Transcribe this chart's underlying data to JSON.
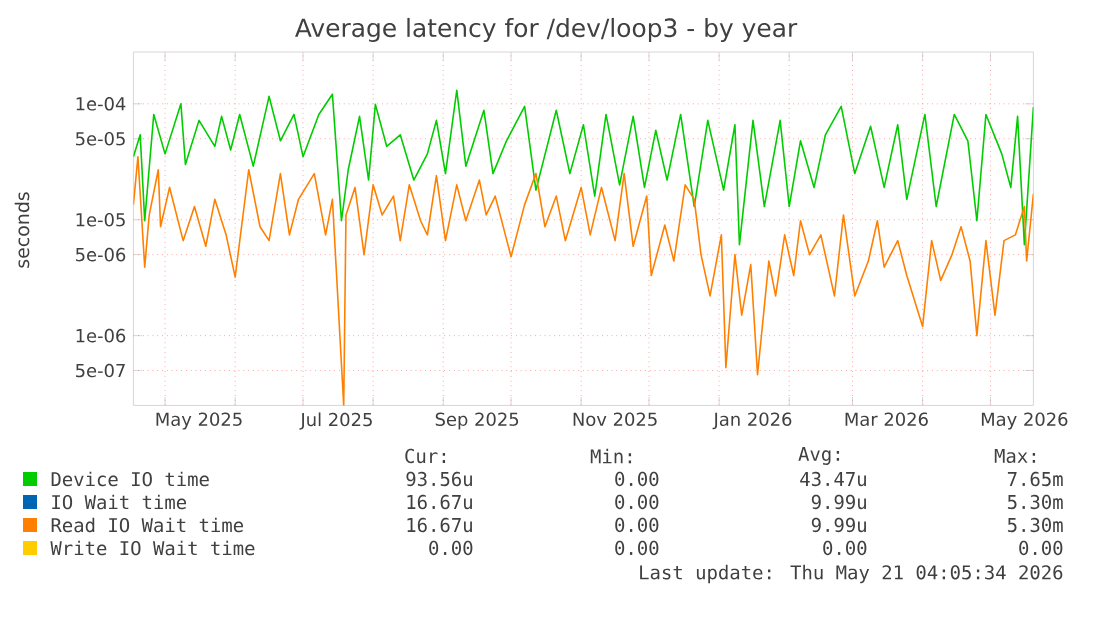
{
  "chart_data": {
    "type": "line",
    "title": "Average latency for /dev/loop3 - by year",
    "ylabel": "seconds",
    "log": "y",
    "grid": true,
    "legend": "bottom",
    "marker": "none",
    "line_style": "solid",
    "xlim": [
      "2025-04-17",
      "2026-05-20"
    ],
    "ylim": [
      2.5e-07,
      0.00028
    ],
    "yticks": [
      {
        "value": 5e-07,
        "label": "5e-07"
      },
      {
        "value": 1e-06,
        "label": "1e-06"
      },
      {
        "value": 5e-06,
        "label": "5e-06"
      },
      {
        "value": 1e-05,
        "label": "1e-05"
      },
      {
        "value": 5e-05,
        "label": "5e-05"
      },
      {
        "value": 0.0001,
        "label": "1e-04"
      }
    ],
    "xticks": [
      {
        "value": "2025-05-01",
        "label": null
      },
      {
        "value": "2025-05-16",
        "label": "May 2025"
      },
      {
        "value": "2025-06-01",
        "label": null
      },
      {
        "value": "2025-07-01",
        "label": null
      },
      {
        "value": "2025-07-16",
        "label": "Jul 2025"
      },
      {
        "value": "2025-08-01",
        "label": null
      },
      {
        "value": "2025-09-01",
        "label": null
      },
      {
        "value": "2025-09-16",
        "label": "Sep 2025"
      },
      {
        "value": "2025-10-01",
        "label": null
      },
      {
        "value": "2025-11-01",
        "label": null
      },
      {
        "value": "2025-11-16",
        "label": "Nov 2025"
      },
      {
        "value": "2025-12-01",
        "label": null
      },
      {
        "value": "2026-01-01",
        "label": null
      },
      {
        "value": "2026-01-16",
        "label": "Jan 2026"
      },
      {
        "value": "2026-02-01",
        "label": null
      },
      {
        "value": "2026-03-01",
        "label": null
      },
      {
        "value": "2026-03-16",
        "label": "Mar 2026"
      },
      {
        "value": "2026-04-01",
        "label": null
      },
      {
        "value": "2026-05-01",
        "label": null
      },
      {
        "value": "2026-05-16",
        "label": "May 2026"
      }
    ],
    "series": [
      {
        "name": "Device IO time",
        "color": "#00cc00",
        "x": [
          "2025-04-17",
          "2025-04-20",
          "2025-04-22",
          "2025-04-26",
          "2025-05-01",
          "2025-05-08",
          "2025-05-10",
          "2025-05-16",
          "2025-05-23",
          "2025-05-26",
          "2025-05-30",
          "2025-06-03",
          "2025-06-09",
          "2025-06-16",
          "2025-06-21",
          "2025-06-27",
          "2025-07-01",
          "2025-07-08",
          "2025-07-14",
          "2025-07-18",
          "2025-07-21",
          "2025-07-26",
          "2025-07-30",
          "2025-08-02",
          "2025-08-07",
          "2025-08-13",
          "2025-08-19",
          "2025-08-25",
          "2025-08-29",
          "2025-09-02",
          "2025-09-07",
          "2025-09-11",
          "2025-09-19",
          "2025-09-23",
          "2025-09-29",
          "2025-10-07",
          "2025-10-12",
          "2025-10-21",
          "2025-10-27",
          "2025-11-02",
          "2025-11-07",
          "2025-11-12",
          "2025-11-18",
          "2025-11-24",
          "2025-11-29",
          "2025-12-04",
          "2025-12-09",
          "2025-12-15",
          "2025-12-21",
          "2025-12-27",
          "2026-01-03",
          "2026-01-08",
          "2026-01-10",
          "2026-01-16",
          "2026-01-21",
          "2026-01-28",
          "2026-02-01",
          "2026-02-06",
          "2026-02-12",
          "2026-02-17",
          "2026-02-24",
          "2026-03-02",
          "2026-03-09",
          "2026-03-15",
          "2026-03-21",
          "2026-03-25",
          "2026-04-02",
          "2026-04-07",
          "2026-04-15",
          "2026-04-21",
          "2026-04-25",
          "2026-04-29",
          "2026-05-06",
          "2026-05-10",
          "2026-05-13",
          "2026-05-16",
          "2026-05-20"
        ],
        "values": [
          3.5e-05,
          5.4e-05,
          9.8e-06,
          8.1e-05,
          3.7e-05,
          0.0001,
          3e-05,
          7.2e-05,
          4.3e-05,
          7.8e-05,
          4e-05,
          8.1e-05,
          2.9e-05,
          0.000116,
          4.8e-05,
          8.1e-05,
          3.5e-05,
          8.1e-05,
          0.000121,
          9.8e-06,
          2.7e-05,
          7.8e-05,
          2.2e-05,
          9.9e-05,
          4.3e-05,
          5.4e-05,
          2.2e-05,
          3.7e-05,
          7.2e-05,
          2.5e-05,
          0.000131,
          2.9e-05,
          8.8e-05,
          2.5e-05,
          4.8e-05,
          9.5e-05,
          1.8e-05,
          8.8e-05,
          2.5e-05,
          6.6e-05,
          1.6e-05,
          8.1e-05,
          2e-05,
          7.8e-05,
          1.9e-05,
          5.9e-05,
          2.2e-05,
          8.1e-05,
          1.3e-05,
          7.2e-05,
          1.8e-05,
          6.6e-05,
          6.1e-06,
          7.2e-05,
          1.3e-05,
          7.2e-05,
          1.3e-05,
          4.8e-05,
          1.9e-05,
          5.4e-05,
          9.5e-05,
          2.5e-05,
          6.4e-05,
          1.9e-05,
          6.6e-05,
          1.5e-05,
          8.1e-05,
          1.3e-05,
          8.1e-05,
          4.8e-05,
          9.8e-06,
          8.1e-05,
          3.7e-05,
          1.9e-05,
          7.8e-05,
          6.1e-06,
          9.4e-05
        ]
      },
      {
        "name": "IO Wait time",
        "color": "#0066b3"
      },
      {
        "name": "Read IO Wait time",
        "color": "#ff8000",
        "x": [
          "2025-04-17",
          "2025-04-19",
          "2025-04-22",
          "2025-04-24",
          "2025-04-28",
          "2025-04-29",
          "2025-05-03",
          "2025-05-09",
          "2025-05-14",
          "2025-05-19",
          "2025-05-23",
          "2025-05-28",
          "2025-06-01",
          "2025-06-07",
          "2025-06-12",
          "2025-06-16",
          "2025-06-21",
          "2025-06-25",
          "2025-06-29",
          "2025-07-06",
          "2025-07-11",
          "2025-07-14",
          "2025-07-19",
          "2025-07-20",
          "2025-07-24",
          "2025-07-28",
          "2025-08-01",
          "2025-08-05",
          "2025-08-10",
          "2025-08-13",
          "2025-08-17",
          "2025-08-22",
          "2025-08-25",
          "2025-08-29",
          "2025-09-02",
          "2025-09-07",
          "2025-09-11",
          "2025-09-17",
          "2025-09-20",
          "2025-09-24",
          "2025-10-01",
          "2025-10-07",
          "2025-10-12",
          "2025-10-16",
          "2025-10-21",
          "2025-10-25",
          "2025-11-01",
          "2025-11-05",
          "2025-11-10",
          "2025-11-16",
          "2025-11-20",
          "2025-11-24",
          "2025-11-30",
          "2025-12-02",
          "2025-12-08",
          "2025-12-12",
          "2025-12-17",
          "2025-12-21",
          "2025-12-24",
          "2025-12-28",
          "2026-01-02",
          "2026-01-04",
          "2026-01-08",
          "2026-01-11",
          "2026-01-15",
          "2026-01-18",
          "2026-01-23",
          "2026-01-26",
          "2026-01-30",
          "2026-02-03",
          "2026-02-06",
          "2026-02-10",
          "2026-02-15",
          "2026-02-21",
          "2026-02-25",
          "2026-03-02",
          "2026-03-08",
          "2026-03-12",
          "2026-03-15",
          "2026-03-21",
          "2026-03-25",
          "2026-04-01",
          "2026-04-05",
          "2026-04-09",
          "2026-04-14",
          "2026-04-18",
          "2026-04-22",
          "2026-04-25",
          "2026-04-29",
          "2026-05-03",
          "2026-05-07",
          "2026-05-12",
          "2026-05-16",
          "2026-05-17",
          "2026-05-20"
        ],
        "values": [
          1.35e-05,
          3.5e-05,
          3.9e-06,
          1.1e-05,
          2.7e-05,
          8.7e-06,
          1.9e-05,
          6.6e-06,
          1.3e-05,
          5.9e-06,
          1.5e-05,
          7.4e-06,
          3.2e-06,
          2.7e-05,
          8.7e-06,
          6.6e-06,
          2.5e-05,
          7.4e-06,
          1.5e-05,
          2.5e-05,
          7.4e-06,
          1.5e-05,
          2.5e-07,
          1.1e-05,
          1.9e-05,
          5e-06,
          2e-05,
          1.1e-05,
          1.6e-05,
          6.6e-06,
          2e-05,
          9.8e-06,
          7.4e-06,
          2.4e-05,
          6.6e-06,
          2e-05,
          9.8e-06,
          2.2e-05,
          1.1e-05,
          1.6e-05,
          4.8e-06,
          1.35e-05,
          2.5e-05,
          8.7e-06,
          1.6e-05,
          6.6e-06,
          1.9e-05,
          7.4e-06,
          1.9e-05,
          6.6e-06,
          2.5e-05,
          5.9e-06,
          1.6e-05,
          3.3e-06,
          9e-06,
          4.4e-06,
          2e-05,
          1.5e-05,
          5e-06,
          2.2e-06,
          7.4e-06,
          5.3e-07,
          5e-06,
          1.5e-06,
          4.1e-06,
          4.6e-07,
          4.4e-06,
          2.2e-06,
          7.4e-06,
          3.3e-06,
          9.8e-06,
          5e-06,
          7.4e-06,
          2.2e-06,
          1.1e-05,
          2.2e-06,
          4.4e-06,
          9.8e-06,
          3.9e-06,
          6.6e-06,
          3.3e-06,
          1.2e-06,
          6.6e-06,
          3e-06,
          5e-06,
          8.7e-06,
          4.4e-06,
          1e-06,
          6.6e-06,
          1.5e-06,
          6.6e-06,
          7.4e-06,
          1.3e-05,
          4.4e-06,
          1.67e-05
        ]
      },
      {
        "name": "Write IO Wait time",
        "color": "#ffcc00"
      }
    ],
    "annotations": [
      "Cur:",
      "Min:",
      "Avg:",
      "Max:",
      "93.56u",
      "0.00",
      "43.47u",
      "7.65m",
      "16.67u",
      "0.00",
      "9.99u",
      "5.30m",
      "16.67u",
      "0.00",
      "9.99u",
      "5.30m",
      "0.00",
      "0.00",
      "0.00",
      "0.00",
      "Last update: Thu May 21 04:05:34 2026"
    ]
  }
}
